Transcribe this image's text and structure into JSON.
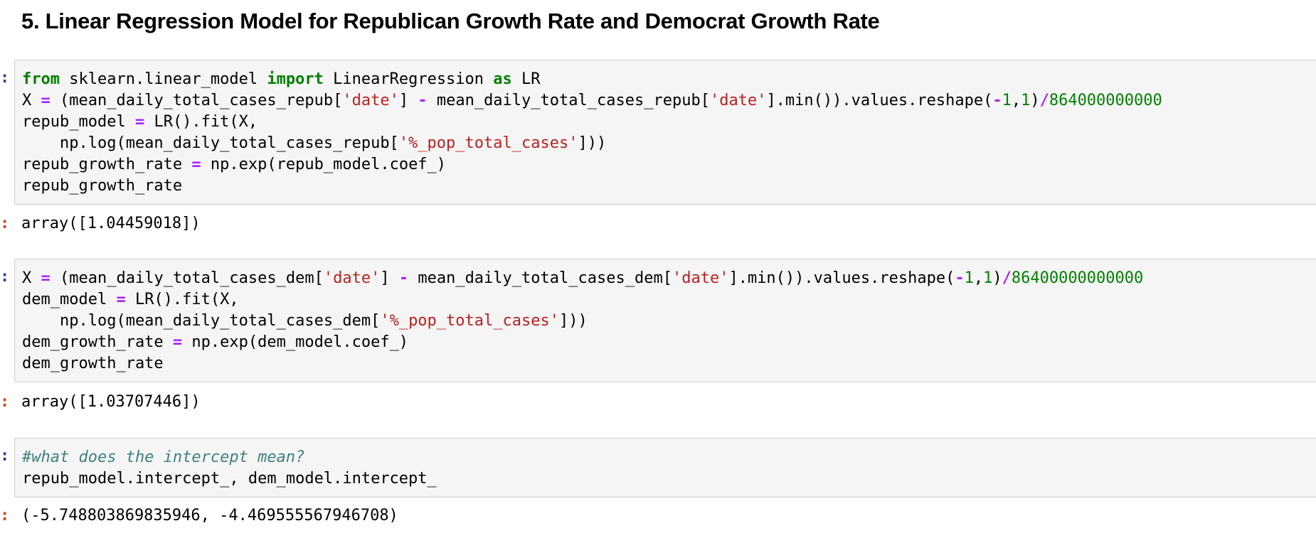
{
  "heading": "5. Linear Regression Model for Republican Growth Rate and Democrat Growth Rate",
  "prompt_glyph": ":",
  "cells": [
    {
      "output": "array([1.04459018])",
      "lines": [
        [
          {
            "t": "from",
            "c": "kw"
          },
          {
            "t": " sklearn.linear_model ",
            "c": ""
          },
          {
            "t": "import",
            "c": "kw"
          },
          {
            "t": " LinearRegression ",
            "c": ""
          },
          {
            "t": "as",
            "c": "kw"
          },
          {
            "t": " LR",
            "c": ""
          }
        ],
        [
          {
            "t": "X ",
            "c": ""
          },
          {
            "t": "=",
            "c": "op"
          },
          {
            "t": " (mean_daily_total_cases_repub[",
            "c": ""
          },
          {
            "t": "'date'",
            "c": "str"
          },
          {
            "t": "] ",
            "c": ""
          },
          {
            "t": "-",
            "c": "op"
          },
          {
            "t": " mean_daily_total_cases_repub[",
            "c": ""
          },
          {
            "t": "'date'",
            "c": "str"
          },
          {
            "t": "].min()).values.reshape(",
            "c": ""
          },
          {
            "t": "-",
            "c": "op"
          },
          {
            "t": "1",
            "c": "num"
          },
          {
            "t": ",",
            "c": ""
          },
          {
            "t": "1",
            "c": "num"
          },
          {
            "t": ")",
            "c": ""
          },
          {
            "t": "/",
            "c": "op"
          },
          {
            "t": "864000000000",
            "c": "num"
          }
        ],
        [
          {
            "t": "repub_model ",
            "c": ""
          },
          {
            "t": "=",
            "c": "op"
          },
          {
            "t": " LR().fit(X,",
            "c": ""
          }
        ],
        [
          {
            "t": "    np.log(mean_daily_total_cases_repub[",
            "c": ""
          },
          {
            "t": "'%_pop_total_cases'",
            "c": "str"
          },
          {
            "t": "]))",
            "c": ""
          }
        ],
        [
          {
            "t": "repub_growth_rate ",
            "c": ""
          },
          {
            "t": "=",
            "c": "op"
          },
          {
            "t": " np.exp(repub_model.coef_)",
            "c": ""
          }
        ],
        [
          {
            "t": "repub_growth_rate",
            "c": ""
          }
        ]
      ]
    },
    {
      "output": "array([1.03707446])",
      "lines": [
        [
          {
            "t": "X ",
            "c": ""
          },
          {
            "t": "=",
            "c": "op"
          },
          {
            "t": " (mean_daily_total_cases_dem[",
            "c": ""
          },
          {
            "t": "'date'",
            "c": "str"
          },
          {
            "t": "] ",
            "c": ""
          },
          {
            "t": "-",
            "c": "op"
          },
          {
            "t": " mean_daily_total_cases_dem[",
            "c": ""
          },
          {
            "t": "'date'",
            "c": "str"
          },
          {
            "t": "].min()).values.reshape(",
            "c": ""
          },
          {
            "t": "-",
            "c": "op"
          },
          {
            "t": "1",
            "c": "num"
          },
          {
            "t": ",",
            "c": ""
          },
          {
            "t": "1",
            "c": "num"
          },
          {
            "t": ")",
            "c": ""
          },
          {
            "t": "/",
            "c": "op"
          },
          {
            "t": "86400000000000",
            "c": "num"
          }
        ],
        [
          {
            "t": "dem_model ",
            "c": ""
          },
          {
            "t": "=",
            "c": "op"
          },
          {
            "t": " LR().fit(X,",
            "c": ""
          }
        ],
        [
          {
            "t": "    np.log(mean_daily_total_cases_dem[",
            "c": ""
          },
          {
            "t": "'%_pop_total_cases'",
            "c": "str"
          },
          {
            "t": "]))",
            "c": ""
          }
        ],
        [
          {
            "t": "dem_growth_rate ",
            "c": ""
          },
          {
            "t": "=",
            "c": "op"
          },
          {
            "t": " np.exp(dem_model.coef_)",
            "c": ""
          }
        ],
        [
          {
            "t": "dem_growth_rate",
            "c": ""
          }
        ]
      ]
    },
    {
      "output": "(-5.748803869835946, -4.469555567946708)",
      "lines": [
        [
          {
            "t": "#what does the intercept mean?",
            "c": "cmt"
          }
        ],
        [
          {
            "t": "repub_model.intercept_, dem_model.intercept_",
            "c": ""
          }
        ]
      ]
    }
  ]
}
